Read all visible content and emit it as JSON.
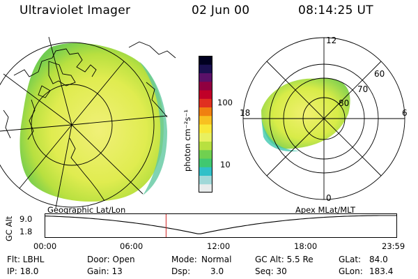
{
  "header": {
    "title": "Ultraviolet Imager",
    "date": "02 Jun 00",
    "time": "08:14:25 UT"
  },
  "colorbar": {
    "unit_label": "photon cm⁻²s⁻¹",
    "ticks": [
      "100",
      "10"
    ],
    "scale": "log",
    "colors": [
      "#e8ecec",
      "#a0d8d8",
      "#30c0c8",
      "#40c870",
      "#70d050",
      "#b8e040",
      "#e8f060",
      "#f8e838",
      "#f8c020",
      "#f08010",
      "#e03020",
      "#c00028",
      "#900040",
      "#5a1068",
      "#1a1050",
      "#000020"
    ]
  },
  "geo_map": {
    "caption": "Geographic Lat/Lon"
  },
  "polar_plot": {
    "caption": "Apex MLat/MLT",
    "mlt_labels": {
      "top": "12",
      "left": "18",
      "right": "6",
      "bottom": "0"
    },
    "lat_labels": [
      "60",
      "70",
      "80"
    ]
  },
  "timeline": {
    "ylabel": "GC Alt",
    "yticks": [
      "9.0",
      "1.8"
    ],
    "xticks": [
      "00:00",
      "06:00",
      "12:00",
      "18:00",
      "23:59"
    ],
    "current_time_hours": 8.24,
    "trace_color": "#000000",
    "marker_color": "#d02020"
  },
  "info": {
    "flt": "Flt: LBHL",
    "ip": "IP: 18.0",
    "door": "Door: Open",
    "gain": "Gain: 13",
    "mode_label": "Mode:",
    "mode_value": "Normal",
    "dsp_label": "Dsp:",
    "dsp_value": "3.0",
    "gcalt": "GC Alt: 5.5 Re",
    "seq": "Seq: 30",
    "glat_label": "GLat:",
    "glat_value": "84.0",
    "glon_label": "GLon:",
    "glon_value": "183.4"
  }
}
